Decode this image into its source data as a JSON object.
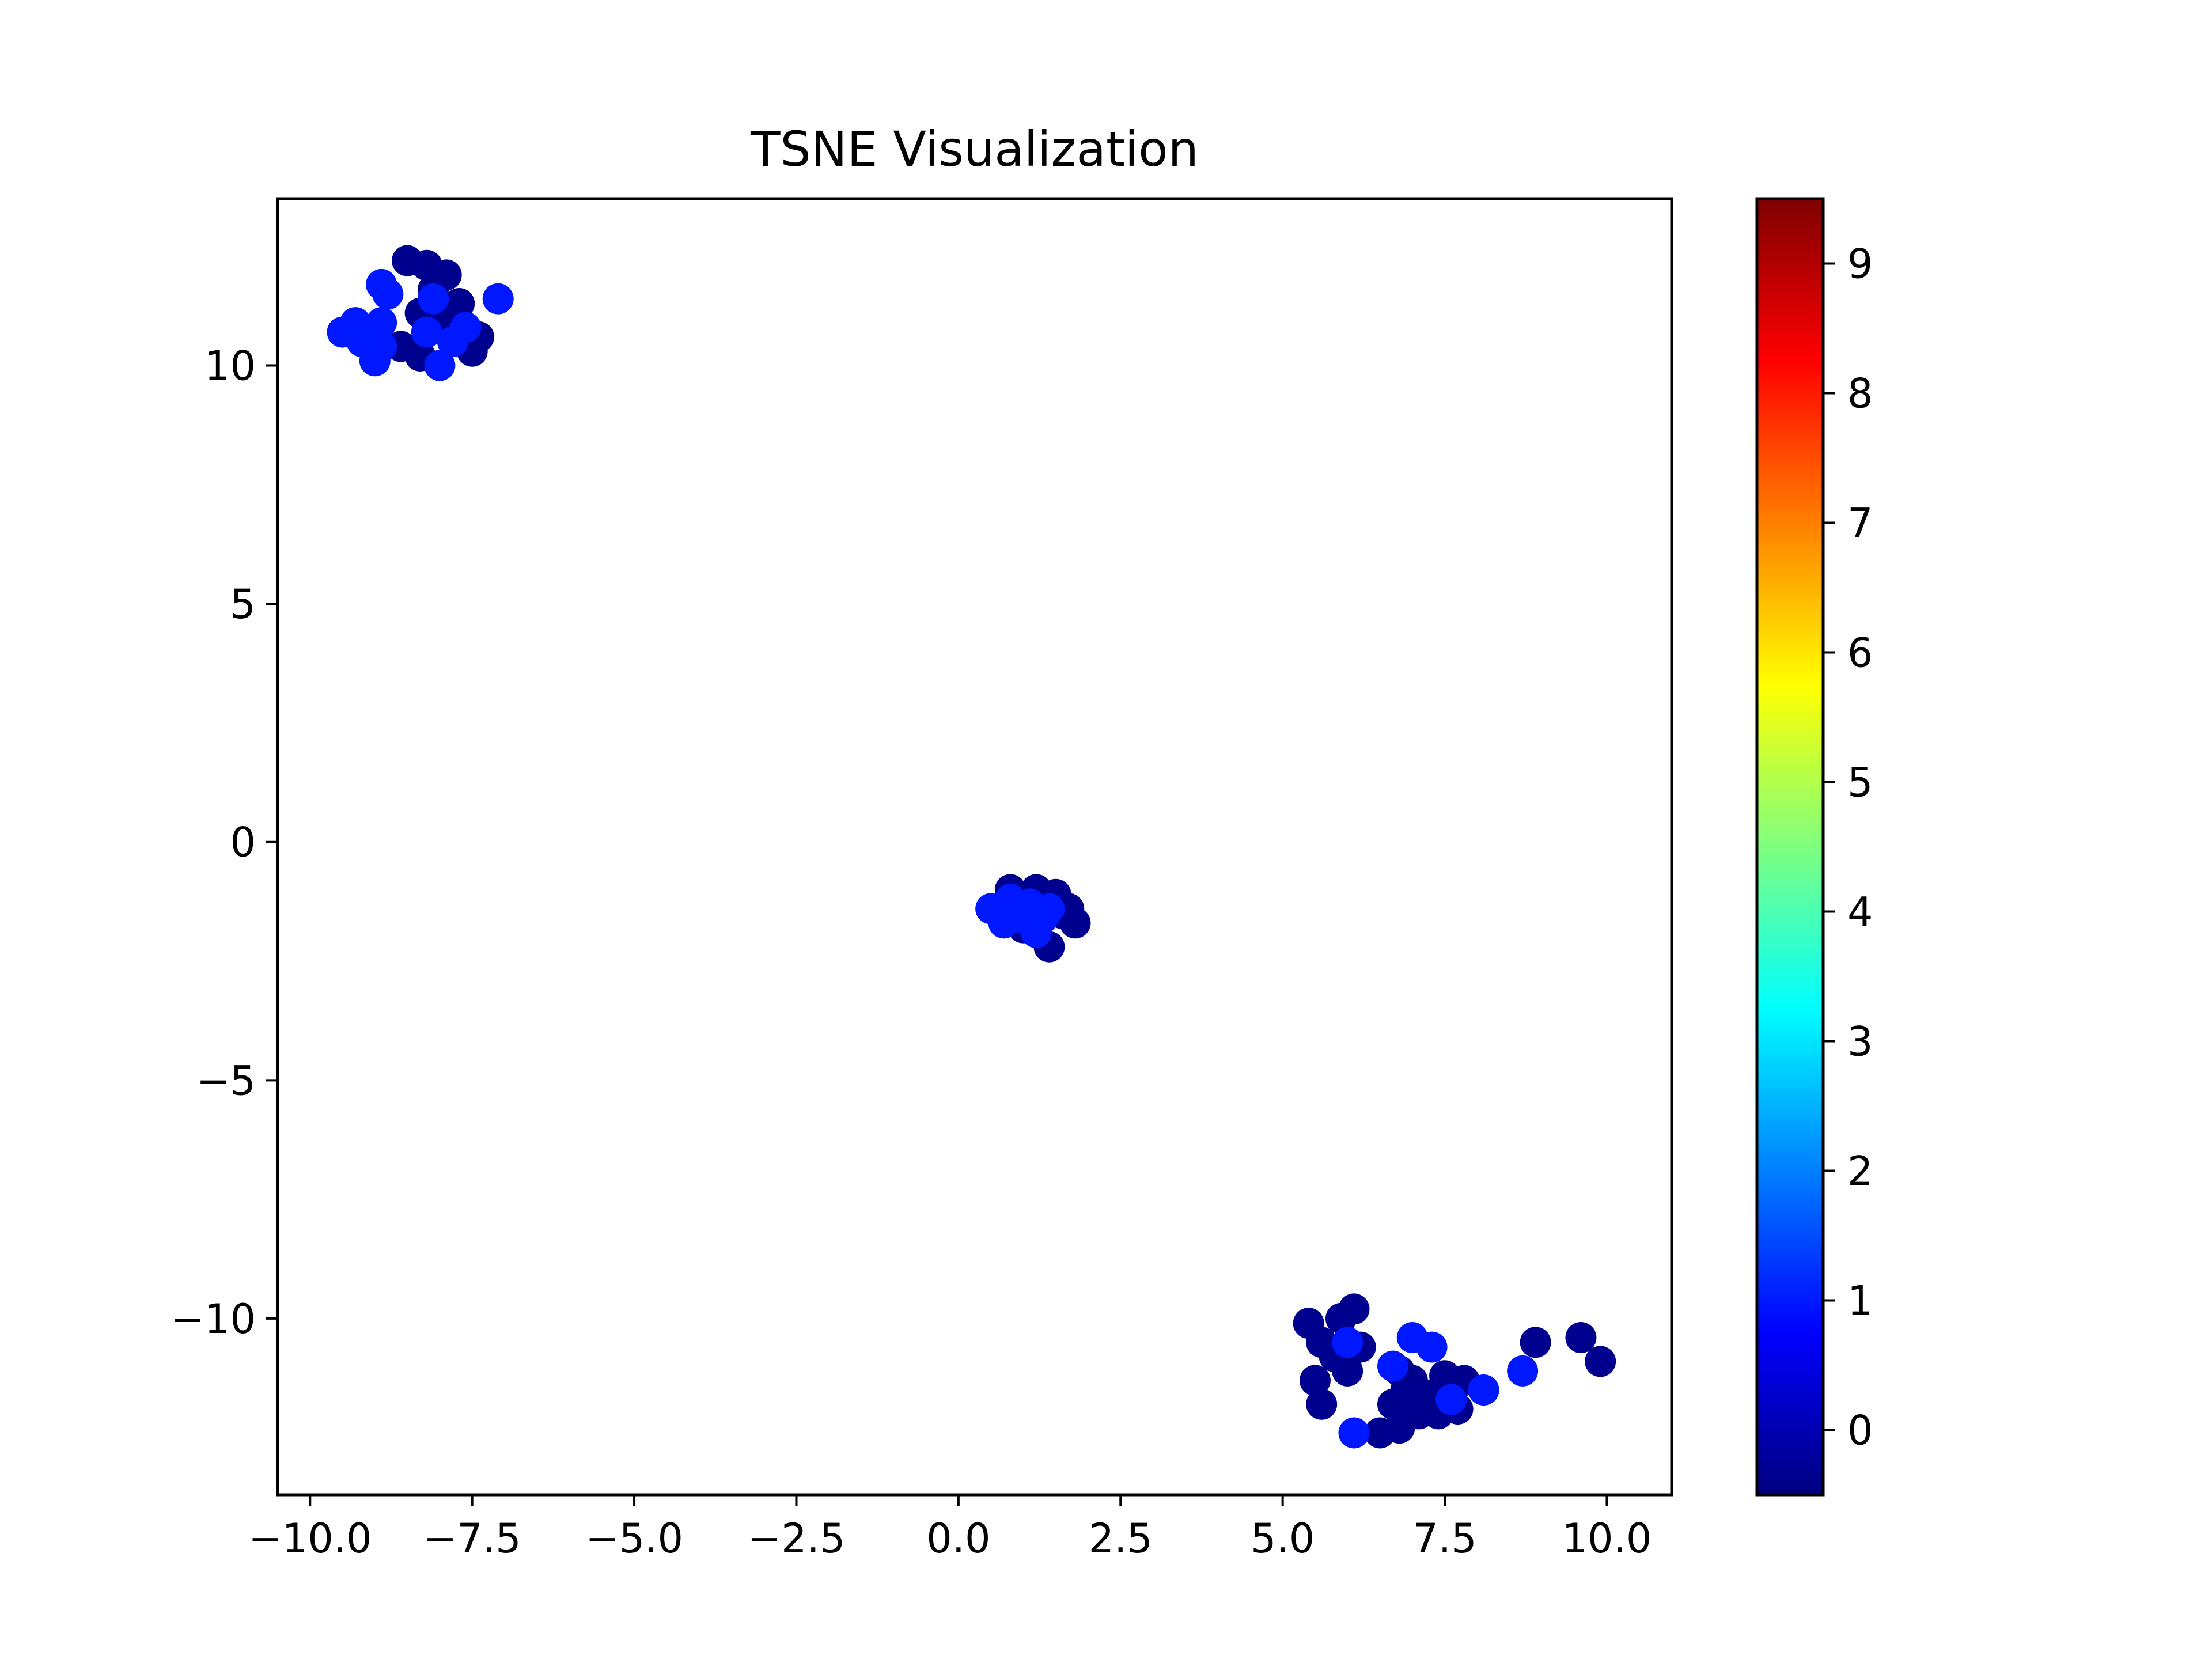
{
  "chart_data": {
    "type": "scatter",
    "title": "TSNE Visualization",
    "xlabel": "",
    "ylabel": "",
    "xlim": [
      -10.5,
      11.0
    ],
    "ylim": [
      -13.7,
      13.5
    ],
    "xticks": [
      -10.0,
      -7.5,
      -5.0,
      -2.5,
      0.0,
      2.5,
      5.0,
      7.5,
      10.0
    ],
    "xtick_labels": [
      "−10.0",
      "−7.5",
      "−5.0",
      "−2.5",
      "0.0",
      "2.5",
      "5.0",
      "7.5",
      "10.0"
    ],
    "yticks": [
      10,
      5,
      0,
      -5,
      -10
    ],
    "ytick_labels": [
      "10",
      "5",
      "0",
      "−5",
      "−10"
    ],
    "grid": false,
    "colormap": "jet",
    "colorbar": {
      "range": [
        -0.5,
        9.5
      ],
      "ticks": [
        0,
        1,
        2,
        3,
        4,
        5,
        6,
        7,
        8,
        9
      ],
      "tick_labels": [
        "0",
        "1",
        "2",
        "3",
        "4",
        "5",
        "6",
        "7",
        "8",
        "9"
      ],
      "stops": [
        "#00007f",
        "#0000ff",
        "#007fff",
        "#00ffff",
        "#7fff7f",
        "#ffff00",
        "#ff7f00",
        "#ff0000",
        "#7f0000"
      ]
    },
    "class_colors": {
      "0": "#00008f",
      "1": "#0018ff"
    },
    "points": [
      {
        "x": -8.5,
        "y": 12.2,
        "c": 0
      },
      {
        "x": -8.2,
        "y": 12.1,
        "c": 0
      },
      {
        "x": -7.9,
        "y": 11.9,
        "c": 0
      },
      {
        "x": -8.1,
        "y": 11.6,
        "c": 0
      },
      {
        "x": -7.7,
        "y": 11.3,
        "c": 0
      },
      {
        "x": -7.4,
        "y": 10.6,
        "c": 0
      },
      {
        "x": -7.5,
        "y": 10.3,
        "c": 0
      },
      {
        "x": -8.3,
        "y": 10.2,
        "c": 0
      },
      {
        "x": -8.6,
        "y": 10.4,
        "c": 0
      },
      {
        "x": -7.9,
        "y": 11.0,
        "c": 0
      },
      {
        "x": -8.3,
        "y": 11.1,
        "c": 0
      },
      {
        "x": -8.9,
        "y": 11.7,
        "c": 1
      },
      {
        "x": -8.8,
        "y": 11.5,
        "c": 1
      },
      {
        "x": -9.3,
        "y": 10.9,
        "c": 1
      },
      {
        "x": -9.5,
        "y": 10.7,
        "c": 1
      },
      {
        "x": -9.2,
        "y": 10.5,
        "c": 1
      },
      {
        "x": -9.0,
        "y": 10.1,
        "c": 1
      },
      {
        "x": -8.9,
        "y": 10.4,
        "c": 1
      },
      {
        "x": -8.9,
        "y": 10.9,
        "c": 1
      },
      {
        "x": -8.0,
        "y": 10.0,
        "c": 1
      },
      {
        "x": -8.2,
        "y": 10.7,
        "c": 1
      },
      {
        "x": -7.6,
        "y": 10.8,
        "c": 1
      },
      {
        "x": -7.1,
        "y": 11.4,
        "c": 1
      },
      {
        "x": -8.1,
        "y": 11.4,
        "c": 1
      },
      {
        "x": -7.8,
        "y": 10.5,
        "c": 1
      },
      {
        "x": 0.8,
        "y": -1.0,
        "c": 0
      },
      {
        "x": 1.2,
        "y": -1.0,
        "c": 0
      },
      {
        "x": 1.5,
        "y": -1.1,
        "c": 0
      },
      {
        "x": 1.7,
        "y": -1.4,
        "c": 0
      },
      {
        "x": 1.8,
        "y": -1.7,
        "c": 0
      },
      {
        "x": 1.4,
        "y": -2.2,
        "c": 0
      },
      {
        "x": 1.0,
        "y": -1.8,
        "c": 0
      },
      {
        "x": 1.6,
        "y": -1.5,
        "c": 0
      },
      {
        "x": 0.5,
        "y": -1.4,
        "c": 1
      },
      {
        "x": 0.7,
        "y": -1.7,
        "c": 1
      },
      {
        "x": 0.9,
        "y": -1.5,
        "c": 1
      },
      {
        "x": 1.1,
        "y": -1.3,
        "c": 1
      },
      {
        "x": 1.3,
        "y": -1.6,
        "c": 1
      },
      {
        "x": 1.2,
        "y": -1.9,
        "c": 1
      },
      {
        "x": 0.8,
        "y": -1.2,
        "c": 1
      },
      {
        "x": 1.4,
        "y": -1.4,
        "c": 1
      },
      {
        "x": 1.0,
        "y": -1.6,
        "c": 1
      },
      {
        "x": 5.4,
        "y": -10.1,
        "c": 0
      },
      {
        "x": 5.6,
        "y": -10.5,
        "c": 0
      },
      {
        "x": 5.9,
        "y": -10.0,
        "c": 0
      },
      {
        "x": 6.1,
        "y": -9.8,
        "c": 0
      },
      {
        "x": 6.2,
        "y": -10.6,
        "c": 0
      },
      {
        "x": 5.5,
        "y": -11.3,
        "c": 0
      },
      {
        "x": 5.6,
        "y": -11.8,
        "c": 0
      },
      {
        "x": 6.0,
        "y": -11.1,
        "c": 0
      },
      {
        "x": 5.8,
        "y": -10.8,
        "c": 0
      },
      {
        "x": 6.5,
        "y": -12.4,
        "c": 0
      },
      {
        "x": 6.8,
        "y": -12.3,
        "c": 0
      },
      {
        "x": 6.7,
        "y": -11.8,
        "c": 0
      },
      {
        "x": 6.9,
        "y": -11.5,
        "c": 0
      },
      {
        "x": 7.1,
        "y": -12.0,
        "c": 0
      },
      {
        "x": 7.3,
        "y": -11.6,
        "c": 0
      },
      {
        "x": 7.5,
        "y": -11.2,
        "c": 0
      },
      {
        "x": 7.7,
        "y": -11.9,
        "c": 0
      },
      {
        "x": 7.8,
        "y": -11.3,
        "c": 0
      },
      {
        "x": 7.0,
        "y": -11.3,
        "c": 0
      },
      {
        "x": 8.9,
        "y": -10.5,
        "c": 0
      },
      {
        "x": 9.6,
        "y": -10.4,
        "c": 0
      },
      {
        "x": 9.9,
        "y": -10.9,
        "c": 0
      },
      {
        "x": 6.8,
        "y": -11.1,
        "c": 0
      },
      {
        "x": 7.4,
        "y": -12.0,
        "c": 0
      },
      {
        "x": 6.1,
        "y": -12.4,
        "c": 1
      },
      {
        "x": 6.7,
        "y": -11.0,
        "c": 1
      },
      {
        "x": 7.0,
        "y": -10.4,
        "c": 1
      },
      {
        "x": 7.3,
        "y": -10.6,
        "c": 1
      },
      {
        "x": 7.6,
        "y": -11.7,
        "c": 1
      },
      {
        "x": 8.1,
        "y": -11.5,
        "c": 1
      },
      {
        "x": 8.7,
        "y": -11.1,
        "c": 1
      },
      {
        "x": 6.0,
        "y": -10.5,
        "c": 1
      }
    ]
  }
}
